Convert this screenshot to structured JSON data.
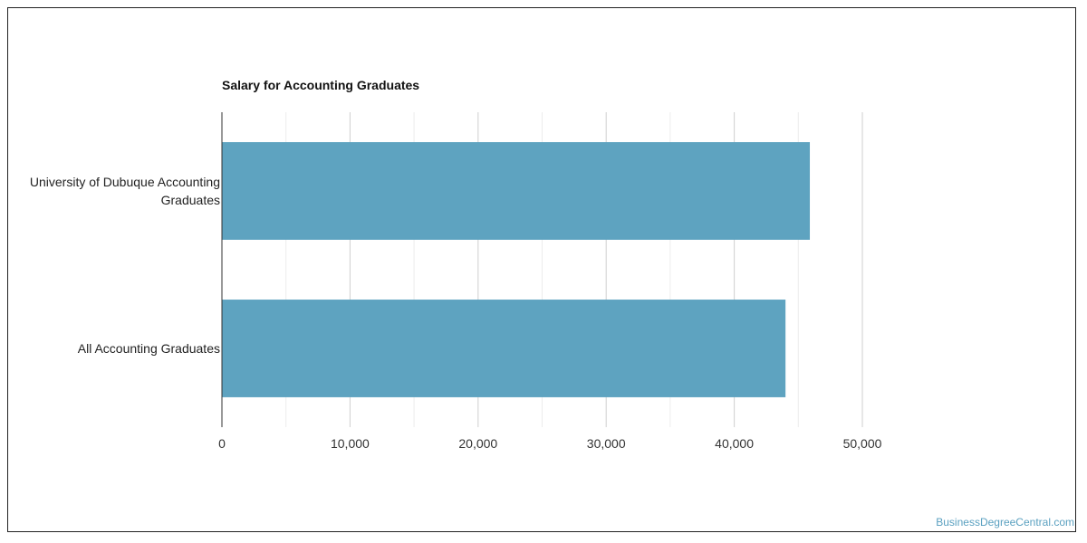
{
  "chart_data": {
    "type": "bar",
    "orientation": "horizontal",
    "title": "Salary for Accounting Graduates",
    "categories": [
      [
        "University of Dubuque Accounting",
        "Graduates"
      ],
      [
        "All Accounting Graduates"
      ]
    ],
    "values": [
      45900,
      44000
    ],
    "x_ticks": [
      0,
      10000,
      20000,
      30000,
      40000,
      50000
    ],
    "x_tick_labels": [
      "0",
      "10,000",
      "20,000",
      "30,000",
      "40,000",
      "50,000"
    ],
    "xlim": [
      0,
      50000
    ],
    "grid": true,
    "bar_color": "#5ea3c0"
  },
  "watermark": "BusinessDegreeCentral.com"
}
